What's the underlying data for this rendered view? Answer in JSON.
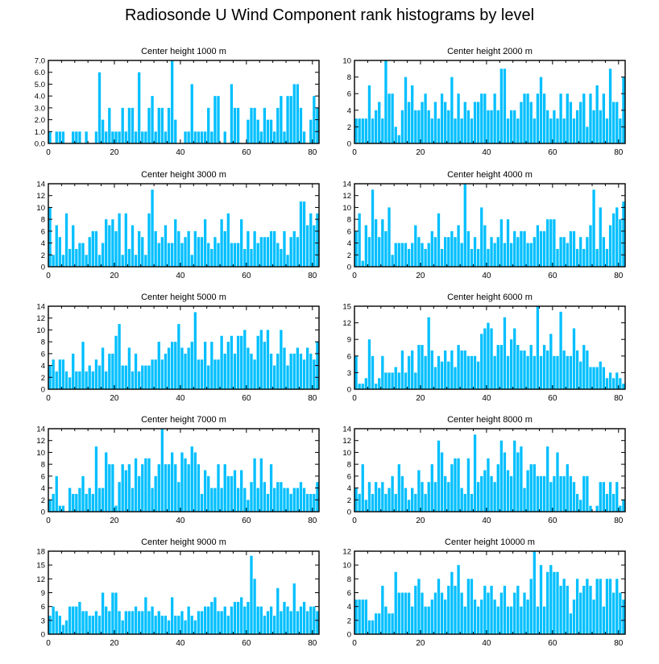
{
  "page": {
    "title": "Radiosonde U Wind Component rank histograms by level"
  },
  "colors": {
    "bar": "#00BFFF",
    "axis": "#000000",
    "background": "#FFFFFF"
  },
  "chart_data": [
    {
      "type": "bar",
      "title": "Center height 1000 m",
      "xlim": [
        0,
        82
      ],
      "ylim": [
        0,
        7
      ],
      "xticks": [
        0,
        20,
        40,
        60,
        80
      ],
      "yticks": [
        0,
        1,
        2,
        3,
        4,
        5,
        6,
        7
      ],
      "ytick_labels": [
        "0.0",
        "1.0",
        "2.0",
        "3.0",
        "4.0",
        "5.0",
        "6.0",
        "7.0"
      ],
      "values": [
        1,
        0,
        1,
        1,
        1,
        0,
        0,
        1,
        1,
        1,
        0,
        1,
        0,
        0,
        1,
        6,
        2,
        1,
        3,
        1,
        1,
        1,
        3,
        1,
        3,
        3,
        1,
        6,
        1,
        1,
        3,
        4,
        1,
        3,
        3,
        1,
        3,
        7,
        2,
        0,
        0,
        1,
        1,
        5,
        1,
        1,
        1,
        1,
        3,
        1,
        4,
        4,
        0,
        1,
        0,
        5,
        3,
        3,
        0,
        0,
        2,
        3,
        3,
        2,
        1,
        3,
        2,
        2,
        1,
        3,
        4,
        1,
        4,
        4,
        5,
        5,
        3,
        1,
        0,
        2,
        4,
        3
      ]
    },
    {
      "type": "bar",
      "title": "Center height 2000 m",
      "xlim": [
        0,
        82
      ],
      "ylim": [
        0,
        10
      ],
      "xticks": [
        0,
        20,
        40,
        60,
        80
      ],
      "yticks": [
        0,
        2,
        4,
        6,
        8,
        10
      ],
      "ytick_labels": [
        "0",
        "2",
        "4",
        "6",
        "8",
        "10"
      ],
      "values": [
        3,
        3,
        3,
        3,
        7,
        3,
        4,
        5,
        3,
        10,
        6,
        6,
        2,
        1,
        4,
        8,
        5,
        7,
        4,
        4,
        5,
        6,
        4,
        3,
        5,
        3,
        6,
        5,
        4,
        8,
        3,
        6,
        3,
        5,
        4,
        3,
        5,
        5,
        6,
        6,
        4,
        4,
        6,
        4,
        9,
        9,
        3,
        4,
        4,
        3,
        5,
        6,
        6,
        5,
        3,
        6,
        8,
        6,
        4,
        3,
        4,
        3,
        6,
        3,
        6,
        5,
        3,
        4,
        5,
        6,
        2,
        6,
        4,
        7,
        4,
        6,
        3,
        9,
        5,
        5,
        3,
        8
      ]
    },
    {
      "type": "bar",
      "title": "Center height 3000 m",
      "xlim": [
        0,
        82
      ],
      "ylim": [
        0,
        14
      ],
      "xticks": [
        0,
        20,
        40,
        60,
        80
      ],
      "yticks": [
        0,
        2,
        4,
        6,
        8,
        10,
        12,
        14
      ],
      "ytick_labels": [
        "0",
        "2",
        "4",
        "6",
        "8",
        "10",
        "12",
        "14"
      ],
      "values": [
        10,
        2,
        7,
        5,
        2,
        9,
        3,
        7,
        3,
        4,
        4,
        2,
        5,
        6,
        6,
        2,
        4,
        8,
        7,
        8,
        6,
        9,
        2,
        9,
        3,
        7,
        2,
        6,
        5,
        2,
        9,
        13,
        6,
        4,
        5,
        7,
        4,
        4,
        8,
        6,
        4,
        5,
        6,
        2,
        6,
        5,
        5,
        8,
        4,
        3,
        5,
        4,
        8,
        6,
        9,
        4,
        4,
        4,
        8,
        3,
        6,
        3,
        6,
        4,
        5,
        5,
        5,
        6,
        6,
        4,
        3,
        6,
        2,
        5,
        6,
        5,
        11,
        11,
        7,
        9,
        7,
        9
      ]
    },
    {
      "type": "bar",
      "title": "Center height 4000 m",
      "xlim": [
        0,
        82
      ],
      "ylim": [
        0,
        14
      ],
      "xticks": [
        0,
        20,
        40,
        60,
        80
      ],
      "yticks": [
        0,
        2,
        4,
        6,
        8,
        10,
        12,
        14
      ],
      "ytick_labels": [
        "0",
        "2",
        "4",
        "6",
        "8",
        "10",
        "12",
        "14"
      ],
      "values": [
        6,
        9,
        1,
        7,
        5,
        13,
        8,
        5,
        8,
        6,
        10,
        2,
        4,
        4,
        4,
        4,
        3,
        4,
        7,
        5,
        4,
        3,
        4,
        6,
        5,
        9,
        3,
        5,
        5,
        6,
        5,
        7,
        4,
        14,
        6,
        3,
        5,
        3,
        10,
        7,
        3,
        5,
        4,
        5,
        8,
        4,
        8,
        4,
        6,
        5,
        6,
        6,
        4,
        4,
        5,
        7,
        6,
        6,
        8,
        8,
        8,
        3,
        5,
        5,
        4,
        6,
        6,
        3,
        5,
        3,
        5,
        7,
        13,
        3,
        10,
        5,
        3,
        7,
        9,
        10,
        8,
        11
      ]
    },
    {
      "type": "bar",
      "title": "Center height 5000 m",
      "xlim": [
        0,
        82
      ],
      "ylim": [
        0,
        14
      ],
      "xticks": [
        0,
        20,
        40,
        60,
        80
      ],
      "yticks": [
        0,
        2,
        4,
        6,
        8,
        10,
        12,
        14
      ],
      "ytick_labels": [
        "0",
        "2",
        "4",
        "6",
        "8",
        "10",
        "12",
        "14"
      ],
      "values": [
        4,
        5,
        3,
        5,
        5,
        3,
        2,
        6,
        3,
        3,
        8,
        3,
        4,
        3,
        5,
        4,
        7,
        3,
        6,
        6,
        9,
        11,
        4,
        4,
        7,
        3,
        6,
        3,
        4,
        4,
        4,
        5,
        5,
        8,
        5,
        6,
        7,
        8,
        8,
        11,
        7,
        6,
        7,
        8,
        13,
        5,
        5,
        8,
        4,
        8,
        5,
        5,
        9,
        6,
        8,
        9,
        6,
        9,
        9,
        10,
        7,
        6,
        5,
        9,
        10,
        8,
        10,
        6,
        4,
        6,
        10,
        7,
        4,
        6,
        6,
        7,
        6,
        5,
        7,
        6,
        5,
        8
      ]
    },
    {
      "type": "bar",
      "title": "Center height 6000 m",
      "xlim": [
        0,
        82
      ],
      "ylim": [
        0,
        15
      ],
      "xticks": [
        0,
        20,
        40,
        60,
        80
      ],
      "yticks": [
        0,
        3,
        6,
        9,
        12,
        15
      ],
      "ytick_labels": [
        "0",
        "3",
        "6",
        "9",
        "12",
        "15"
      ],
      "values": [
        6,
        1,
        1,
        2,
        9,
        6,
        1,
        2,
        6,
        3,
        3,
        3,
        4,
        3,
        7,
        3,
        6,
        7,
        3,
        8,
        8,
        6,
        13,
        7,
        4,
        6,
        5,
        7,
        5,
        7,
        4,
        8,
        7,
        7,
        6,
        6,
        6,
        5,
        10,
        11,
        12,
        11,
        6,
        8,
        8,
        13,
        6,
        9,
        11,
        8,
        7,
        7,
        6,
        8,
        6,
        15,
        6,
        8,
        7,
        10,
        6,
        6,
        14,
        7,
        6,
        6,
        11,
        7,
        5,
        8,
        7,
        4,
        4,
        4,
        5,
        4,
        2,
        3,
        2,
        3,
        2,
        1
      ]
    },
    {
      "type": "bar",
      "title": "Center height 7000 m",
      "xlim": [
        0,
        82
      ],
      "ylim": [
        0,
        14
      ],
      "xticks": [
        0,
        20,
        40,
        60,
        80
      ],
      "yticks": [
        0,
        2,
        4,
        6,
        8,
        10,
        12,
        14
      ],
      "ytick_labels": [
        "0",
        "2",
        "4",
        "6",
        "8",
        "10",
        "12",
        "14"
      ],
      "values": [
        2,
        3,
        6,
        1,
        1,
        0,
        4,
        3,
        3,
        4,
        6,
        3,
        4,
        3,
        11,
        4,
        4,
        10,
        8,
        8,
        1,
        5,
        8,
        7,
        8,
        4,
        9,
        6,
        8,
        9,
        9,
        4,
        6,
        8,
        14,
        8,
        8,
        10,
        8,
        5,
        10,
        9,
        8,
        11,
        10,
        8,
        3,
        7,
        6,
        4,
        4,
        8,
        4,
        8,
        6,
        6,
        7,
        4,
        7,
        4,
        2,
        5,
        9,
        4,
        9,
        5,
        3,
        8,
        4,
        5,
        5,
        4,
        4,
        3,
        4,
        4,
        5,
        4,
        3,
        3,
        3,
        5
      ]
    },
    {
      "type": "bar",
      "title": "Center height 8000 m",
      "xlim": [
        0,
        82
      ],
      "ylim": [
        0,
        14
      ],
      "xticks": [
        0,
        20,
        40,
        60,
        80
      ],
      "yticks": [
        0,
        2,
        4,
        6,
        8,
        10,
        12,
        14
      ],
      "ytick_labels": [
        "0",
        "2",
        "4",
        "6",
        "8",
        "10",
        "12",
        "14"
      ],
      "values": [
        4,
        3,
        8,
        2,
        5,
        3,
        5,
        4,
        5,
        3,
        4,
        6,
        3,
        8,
        6,
        4,
        2,
        4,
        3,
        7,
        5,
        3,
        5,
        8,
        5,
        12,
        10,
        6,
        5,
        8,
        9,
        9,
        4,
        3,
        9,
        3,
        13,
        5,
        6,
        7,
        9,
        6,
        5,
        8,
        12,
        10,
        7,
        6,
        12,
        10,
        11,
        4,
        7,
        8,
        8,
        6,
        6,
        6,
        11,
        5,
        6,
        10,
        6,
        6,
        8,
        6,
        5,
        3,
        2,
        6,
        6,
        1,
        0,
        1,
        5,
        5,
        3,
        5,
        3,
        5,
        1,
        2
      ]
    },
    {
      "type": "bar",
      "title": "Center height 9000 m",
      "xlim": [
        0,
        82
      ],
      "ylim": [
        0,
        18
      ],
      "xticks": [
        0,
        20,
        40,
        60,
        80
      ],
      "yticks": [
        0,
        3,
        6,
        9,
        12,
        15,
        18
      ],
      "ytick_labels": [
        "0",
        "3",
        "6",
        "9",
        "12",
        "15",
        "18"
      ],
      "values": [
        4,
        6,
        5,
        4,
        2,
        3,
        6,
        6,
        6,
        7,
        5,
        5,
        4,
        4,
        5,
        4,
        9,
        6,
        5,
        9,
        9,
        5,
        3,
        5,
        5,
        5,
        6,
        5,
        5,
        8,
        5,
        6,
        4,
        5,
        4,
        4,
        3,
        8,
        4,
        4,
        5,
        3,
        6,
        4,
        3,
        5,
        5,
        6,
        6,
        7,
        8,
        5,
        5,
        6,
        4,
        6,
        7,
        7,
        8,
        6,
        7,
        17,
        12,
        6,
        6,
        4,
        5,
        6,
        4,
        10,
        5,
        7,
        6,
        5,
        11,
        5,
        6,
        7,
        5,
        6,
        6,
        5
      ]
    },
    {
      "type": "bar",
      "title": "Center height 10000 m",
      "xlim": [
        0,
        82
      ],
      "ylim": [
        0,
        12
      ],
      "xticks": [
        0,
        20,
        40,
        60,
        80
      ],
      "yticks": [
        0,
        2,
        4,
        6,
        8,
        10,
        12
      ],
      "ytick_labels": [
        "0",
        "2",
        "4",
        "6",
        "8",
        "10",
        "12"
      ],
      "values": [
        5,
        5,
        5,
        5,
        2,
        2,
        3,
        3,
        7,
        4,
        3,
        3,
        9,
        6,
        6,
        6,
        6,
        4,
        7,
        8,
        6,
        4,
        4,
        5,
        6,
        8,
        6,
        5,
        7,
        9,
        7,
        10,
        6,
        4,
        8,
        8,
        5,
        4,
        5,
        7,
        6,
        7,
        5,
        4,
        6,
        7,
        4,
        4,
        6,
        7,
        4,
        6,
        5,
        8,
        12,
        4,
        10,
        4,
        9,
        10,
        9,
        9,
        7,
        8,
        7,
        3,
        5,
        8,
        6,
        7,
        8,
        7,
        5,
        8,
        8,
        4,
        8,
        8,
        6,
        8,
        6,
        5
      ]
    }
  ]
}
